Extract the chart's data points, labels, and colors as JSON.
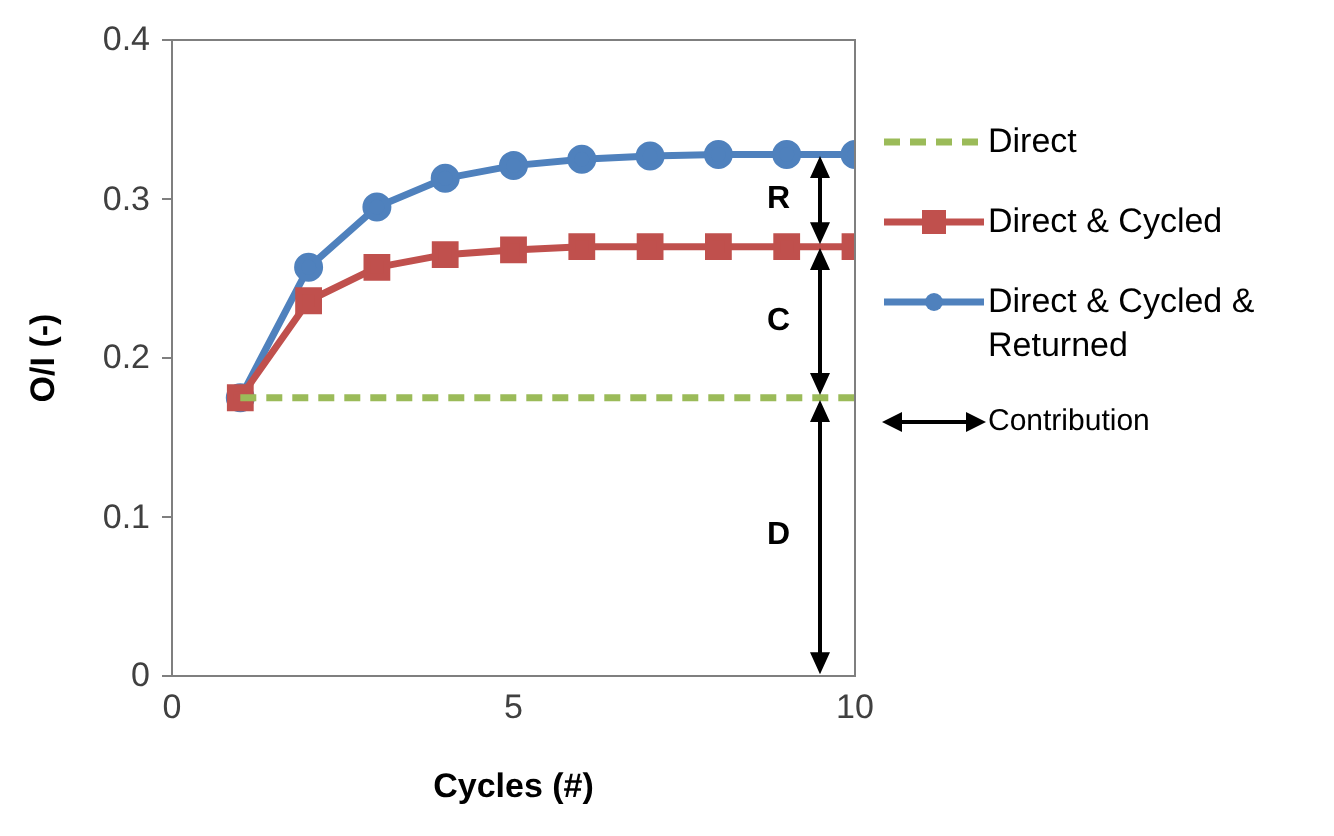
{
  "chart_data": {
    "type": "line",
    "xlabel": "Cycles (#)",
    "ylabel": "O/I (-)",
    "x": [
      1,
      2,
      3,
      4,
      5,
      6,
      7,
      8,
      9,
      10
    ],
    "series": [
      {
        "name": "Direct",
        "color": "#9bbb59",
        "line_style": "dashed",
        "marker": "none",
        "values": [
          0.175,
          0.175,
          0.175,
          0.175,
          0.175,
          0.175,
          0.175,
          0.175,
          0.175,
          0.175
        ]
      },
      {
        "name": "Direct & Cycled",
        "color": "#c0504d",
        "line_style": "solid",
        "marker": "square",
        "values": [
          0.175,
          0.236,
          0.257,
          0.265,
          0.268,
          0.27,
          0.27,
          0.27,
          0.27,
          0.27
        ]
      },
      {
        "name": "Direct & Cycled & Returned",
        "color": "#4f81bd",
        "line_style": "solid",
        "marker": "circle",
        "values": [
          0.175,
          0.257,
          0.295,
          0.313,
          0.321,
          0.325,
          0.327,
          0.328,
          0.328,
          0.328
        ]
      }
    ],
    "xlim": [
      0,
      10
    ],
    "xticks": [
      0,
      5,
      10
    ],
    "ylim": [
      0,
      0.4
    ],
    "yticks": [
      0,
      0.1,
      0.2,
      0.3,
      0.4
    ],
    "grid": false,
    "legend": "right",
    "annotations": [
      "R",
      "C",
      "D",
      "Contribution"
    ]
  }
}
